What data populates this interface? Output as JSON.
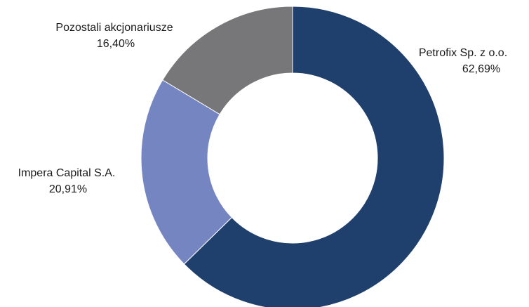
{
  "chart_data": {
    "type": "pie",
    "title": "",
    "donut": true,
    "slices": [
      {
        "label": "Petrofix Sp. z o.o.",
        "value": 62.69,
        "value_label": "62,69%",
        "color": "#1f3f6d"
      },
      {
        "label": "Impera Capital S.A.",
        "value": 20.91,
        "value_label": "20,91%",
        "color": "#7485c2"
      },
      {
        "label": "Pozostali akcjonariusze",
        "value": 16.4,
        "value_label": "16,40%",
        "color": "#77777a"
      }
    ],
    "legend": "none",
    "start_angle": "top",
    "direction": "clockwise"
  }
}
